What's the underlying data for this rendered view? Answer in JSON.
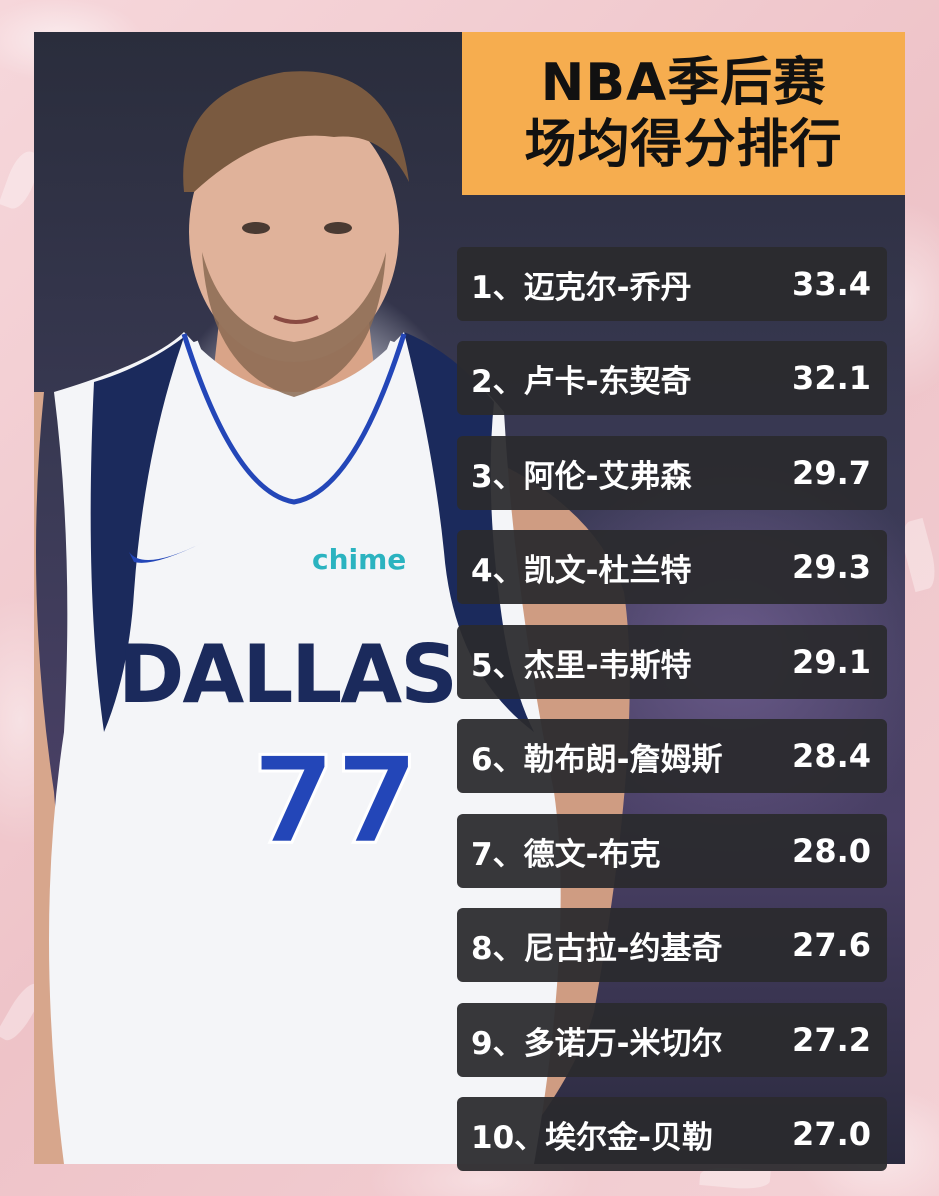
{
  "title": {
    "line1": "NBA季后赛",
    "line2": "场均得分排行"
  },
  "jersey": {
    "team": "DALLAS",
    "number": "77",
    "sponsor": "chime"
  },
  "rankings": [
    {
      "rank": "1、",
      "name": "迈克尔-乔丹",
      "score": "33.4"
    },
    {
      "rank": "2、",
      "name": "卢卡-东契奇",
      "score": "32.1"
    },
    {
      "rank": "3、",
      "name": "阿伦-艾弗森",
      "score": "29.7"
    },
    {
      "rank": "4、",
      "name": "凯文-杜兰特",
      "score": "29.3"
    },
    {
      "rank": "5、",
      "name": "杰里-韦斯特",
      "score": "29.1"
    },
    {
      "rank": "6、",
      "name": "勒布朗-詹姆斯",
      "score": "28.4"
    },
    {
      "rank": "7、",
      "name": "德文-布克",
      "score": "28.0"
    },
    {
      "rank": "8、",
      "name": "尼古拉-约基奇",
      "score": "27.6"
    },
    {
      "rank": "9、",
      "name": "多诺万-米切尔",
      "score": "27.2"
    },
    {
      "rank": "10、",
      "name": "埃尔金-贝勒",
      "score": "27.0"
    }
  ],
  "colors": {
    "title_bg": "#f6ad4f",
    "row_bg": "#2a2a2e",
    "frame": "#f3cfd3",
    "jersey_navy": "#1b2a5c",
    "jersey_blue": "#2346b8",
    "sponsor_teal": "#2bb3c0"
  }
}
